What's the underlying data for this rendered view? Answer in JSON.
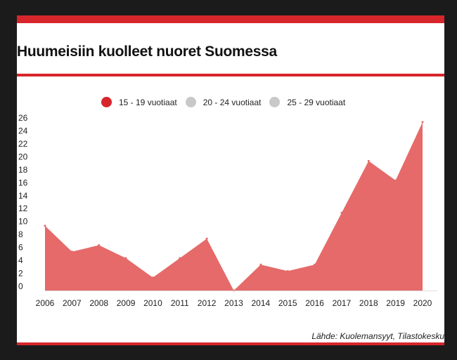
{
  "title": "Huumeisiin kuolleet nuoret Suomessa",
  "source": "Lähde: Kuolemansyyt, Tilastokeskus",
  "legend": [
    {
      "label": "15 - 19 vuotiaat",
      "color": "#d7262b"
    },
    {
      "label": "20 - 24 vuotiaat",
      "color": "#c8c8c8"
    },
    {
      "label": "25 - 29 vuotiaat",
      "color": "#c8c8c8"
    }
  ],
  "chart_data": {
    "type": "area",
    "categories": [
      "2006",
      "2007",
      "2008",
      "2009",
      "2010",
      "2011",
      "2012",
      "2013",
      "2014",
      "2015",
      "2016",
      "2017",
      "2018",
      "2019",
      "2020"
    ],
    "series": [
      {
        "name": "15 - 19 vuotiaat",
        "color": "#e56a69",
        "values": [
          10,
          6,
          7,
          5,
          2,
          5,
          8,
          0,
          4,
          3,
          4,
          12,
          20,
          17,
          26
        ]
      }
    ],
    "yticks": [
      0,
      2,
      4,
      6,
      8,
      10,
      12,
      14,
      16,
      18,
      20,
      22,
      24,
      26
    ],
    "ylim": [
      0,
      26
    ],
    "grid": false,
    "legend_position": "top"
  }
}
